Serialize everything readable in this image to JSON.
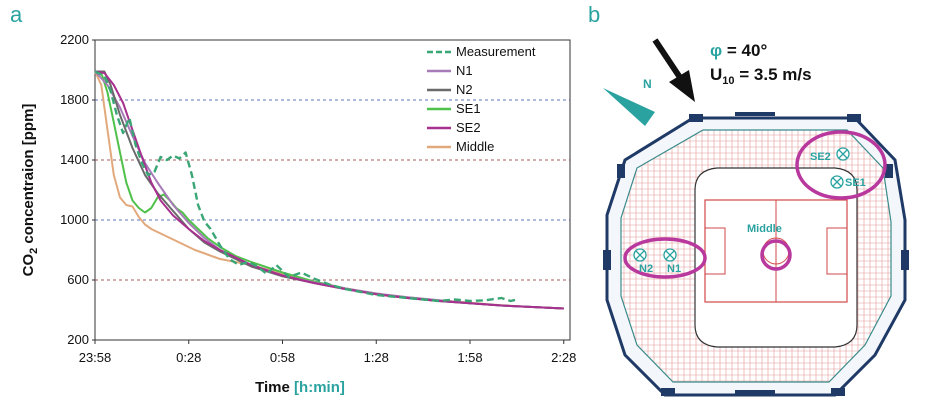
{
  "panel_a_label": "a",
  "panel_b_label": "b",
  "chart_data": {
    "type": "line",
    "xlabel": "Time",
    "xlabel_unit": "[h:min]",
    "ylabel": "CO",
    "ylabel_sub": "2",
    "ylabel_rest": " concentraion [ppm]",
    "ylim": [
      200,
      2200
    ],
    "xlim_min": [
      0,
      152
    ],
    "yticks": [
      200,
      600,
      1000,
      1400,
      1800,
      2200
    ],
    "xtick_labels": [
      "23:58",
      "0:28",
      "0:58",
      "1:28",
      "1:58",
      "2:28"
    ],
    "xtick_minutes": [
      0,
      30,
      60,
      90,
      120,
      150
    ],
    "grid": "horizontal dashed",
    "legend_position": "top-right",
    "series": [
      {
        "name": "Measurement",
        "color": "#3aa675",
        "style": "dashed",
        "x": [
          0,
          3,
          5,
          7,
          9,
          11,
          13,
          15,
          17,
          19,
          21,
          23,
          25,
          27,
          29,
          31,
          33,
          35,
          37,
          40,
          43,
          46,
          49,
          52,
          55,
          58,
          62,
          66,
          70,
          75,
          80,
          85,
          90,
          95,
          100,
          105,
          110,
          115,
          120,
          125,
          130,
          133,
          135
        ],
        "y": [
          1990,
          1960,
          1860,
          1700,
          1580,
          1680,
          1500,
          1380,
          1300,
          1320,
          1420,
          1400,
          1430,
          1410,
          1450,
          1300,
          1100,
          990,
          940,
          830,
          740,
          700,
          720,
          690,
          640,
          700,
          620,
          650,
          610,
          570,
          540,
          520,
          500,
          490,
          480,
          470,
          460,
          470,
          460,
          465,
          480,
          460,
          470
        ]
      },
      {
        "name": "N1",
        "color": "#a77ab8",
        "style": "solid",
        "x": [
          0,
          4,
          8,
          12,
          16,
          20,
          25,
          30,
          35,
          40,
          50,
          60,
          70,
          80,
          90,
          100,
          110,
          120,
          130,
          140,
          150
        ],
        "y": [
          1990,
          1900,
          1750,
          1560,
          1380,
          1250,
          1100,
          980,
          880,
          800,
          700,
          630,
          585,
          545,
          510,
          485,
          465,
          445,
          430,
          420,
          410
        ]
      },
      {
        "name": "N2",
        "color": "#6a6a6a",
        "style": "solid",
        "x": [
          0,
          3,
          5,
          8,
          12,
          16,
          20,
          25,
          30,
          35,
          40,
          50,
          60,
          70,
          80,
          90,
          100,
          110,
          120,
          130,
          140,
          150
        ],
        "y": [
          1990,
          1990,
          1900,
          1700,
          1480,
          1300,
          1180,
          1060,
          940,
          850,
          790,
          690,
          625,
          580,
          540,
          505,
          480,
          460,
          445,
          430,
          420,
          410
        ]
      },
      {
        "name": "SE1",
        "color": "#4fc14a",
        "style": "solid",
        "x": [
          0,
          2,
          4,
          6,
          8,
          10,
          12,
          14,
          16,
          18,
          20,
          22,
          24,
          26,
          28,
          30,
          32,
          34,
          36,
          40,
          45,
          50,
          60,
          70,
          80,
          90,
          100,
          110,
          120,
          130,
          140,
          150
        ],
        "y": [
          1990,
          1980,
          1850,
          1650,
          1450,
          1250,
          1130,
          1080,
          1050,
          1080,
          1150,
          1170,
          1130,
          1080,
          1050,
          1000,
          960,
          920,
          880,
          820,
          760,
          720,
          650,
          590,
          545,
          505,
          480,
          460,
          445,
          430,
          420,
          410
        ]
      },
      {
        "name": "SE2",
        "color": "#a8308f",
        "style": "solid",
        "x": [
          0,
          3,
          6,
          9,
          12,
          15,
          18,
          21,
          25,
          30,
          35,
          40,
          50,
          60,
          70,
          80,
          90,
          100,
          110,
          120,
          130,
          140,
          150
        ],
        "y": [
          1990,
          1980,
          1900,
          1780,
          1600,
          1420,
          1250,
          1130,
          1030,
          940,
          860,
          800,
          700,
          630,
          580,
          540,
          505,
          480,
          460,
          445,
          430,
          420,
          410
        ]
      },
      {
        "name": "Middle",
        "color": "#e2a97c",
        "style": "solid",
        "x": [
          0,
          2,
          4,
          6,
          8,
          10,
          12,
          14,
          16,
          18,
          20,
          24,
          28,
          32,
          36,
          40,
          45,
          50,
          60,
          70,
          80,
          90,
          100,
          110,
          120,
          130,
          140,
          150
        ],
        "y": [
          1990,
          1900,
          1600,
          1300,
          1150,
          1100,
          1090,
          1020,
          970,
          940,
          920,
          880,
          840,
          800,
          770,
          740,
          720,
          700,
          640,
          590,
          545,
          510,
          485,
          465,
          448,
          432,
          420,
          410
        ]
      }
    ]
  },
  "stadium": {
    "north_label": "N",
    "wind_phi": "φ",
    "wind_angle": "= 40°",
    "wind_u": "U",
    "wind_u_sub": "10",
    "wind_speed": "= 3.5 m/s",
    "locations": [
      {
        "name": "SE2"
      },
      {
        "name": "SE1"
      },
      {
        "name": "Middle"
      },
      {
        "name": "N2"
      },
      {
        "name": "N1"
      }
    ],
    "highlight_color": "#b8389e",
    "label_color": "#2aa3a0"
  }
}
